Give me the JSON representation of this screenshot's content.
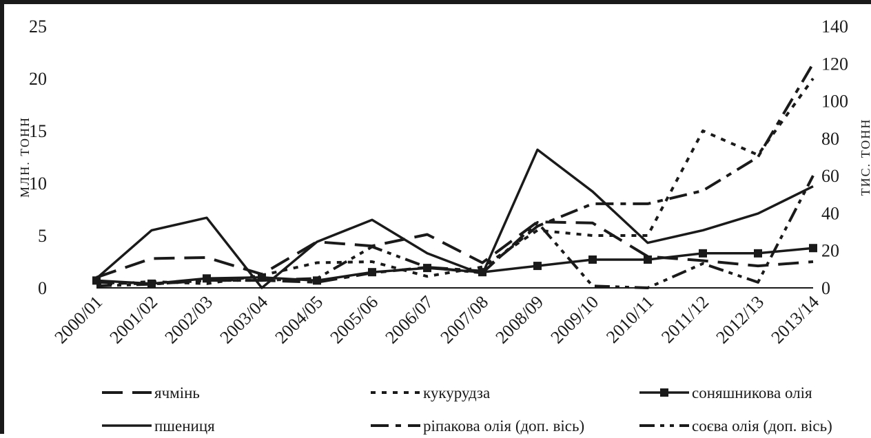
{
  "chart_data": {
    "type": "line",
    "categories": [
      "2000/01",
      "2001/02",
      "2002/03",
      "2003/04",
      "2004/05",
      "2005/06",
      "2006/07",
      "2007/08",
      "2008/09",
      "2009/10",
      "2010/11",
      "2011/12",
      "2012/13",
      "2013/14"
    ],
    "ylabel": "МЛН. ТОНН",
    "y2label": "ТИС. ТОНН",
    "ylim": [
      0,
      25
    ],
    "y2lim": [
      0,
      140
    ],
    "yticks": [
      "0",
      "5",
      "10",
      "15",
      "20",
      "25"
    ],
    "y2ticks": [
      "0",
      "20",
      "40",
      "60",
      "80",
      "100",
      "120",
      "140"
    ],
    "legend_position": "bottom",
    "series": [
      {
        "name": "ячмінь",
        "axis": "left",
        "style": "long-dash",
        "values": [
          1.0,
          2.8,
          2.9,
          1.3,
          4.4,
          4.0,
          5.1,
          2.4,
          6.3,
          6.2,
          3.0,
          2.6,
          2.1,
          2.5
        ]
      },
      {
        "name": "кукурудза",
        "axis": "left",
        "style": "dotted",
        "values": [
          0.3,
          0.6,
          0.4,
          1.2,
          2.4,
          2.5,
          1.1,
          2.0,
          5.5,
          5.0,
          5.0,
          15.0,
          12.7,
          20.0
        ]
      },
      {
        "name": "соняшникова олія",
        "axis": "left",
        "style": "solid-square",
        "values": [
          0.7,
          0.4,
          0.9,
          1.0,
          0.7,
          1.5,
          1.9,
          1.5,
          2.1,
          2.7,
          2.7,
          3.3,
          3.3,
          3.8
        ]
      },
      {
        "name": "пшениця",
        "axis": "left",
        "style": "solid",
        "values": [
          0.9,
          5.5,
          6.7,
          0.0,
          4.4,
          6.5,
          3.3,
          1.3,
          13.2,
          9.2,
          4.3,
          5.5,
          7.1,
          9.7
        ]
      },
      {
        "name": "ріпакова олія (доп. вісь)",
        "axis": "right",
        "style": "dash-dot",
        "values": [
          3,
          2,
          4,
          4,
          3,
          8,
          11,
          9,
          33,
          45,
          45,
          52,
          70,
          120
        ]
      },
      {
        "name": "соєва олія (доп. вісь)",
        "axis": "right",
        "style": "dash-dot-dot",
        "values": [
          1,
          2,
          4,
          4,
          5,
          22,
          11,
          8,
          35,
          1,
          0,
          13,
          3,
          60
        ]
      }
    ]
  }
}
